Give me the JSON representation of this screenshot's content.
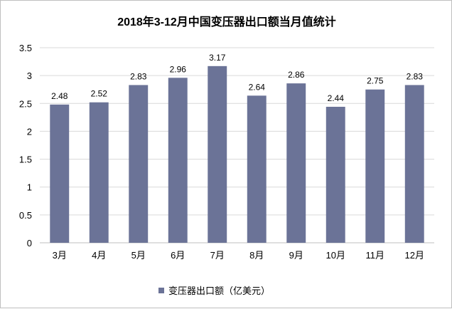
{
  "chart_data": {
    "type": "bar",
    "title": "2018年3-12月中国变压器出口额当月值统计",
    "categories": [
      "3月",
      "4月",
      "5月",
      "6月",
      "7月",
      "8月",
      "9月",
      "10月",
      "11月",
      "12月"
    ],
    "series": [
      {
        "name": "变压器出口额（亿美元）",
        "values": [
          2.48,
          2.52,
          2.83,
          2.96,
          3.17,
          2.64,
          2.86,
          2.44,
          2.75,
          2.83
        ],
        "color": "#6b7397"
      }
    ],
    "data_labels": [
      "2.48",
      "2.52",
      "2.83",
      "2.96",
      "3.17",
      "2.64",
      "2.86",
      "2.44",
      "2.75",
      "2.83"
    ],
    "y_ticks": [
      "0",
      "0.5",
      "1",
      "1.5",
      "2",
      "2.5",
      "3",
      "3.5"
    ],
    "ylim": [
      0,
      3.5
    ],
    "grid": true,
    "legend_position": "bottom",
    "grid_color": "#d9d9d9",
    "axis_color": "#bfbfbf"
  }
}
